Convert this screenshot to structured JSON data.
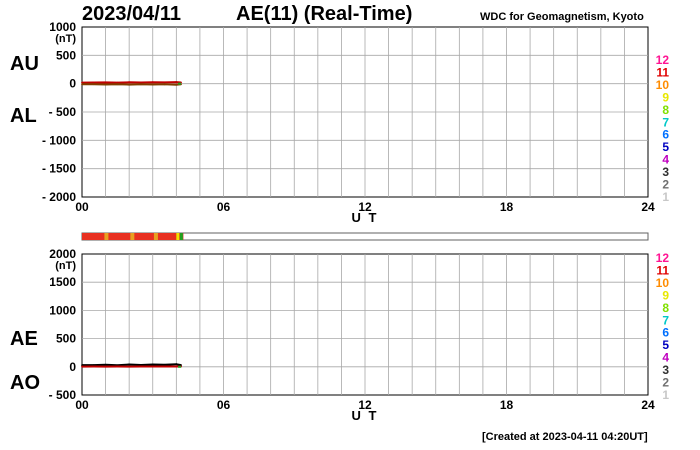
{
  "header": {
    "date": "2023/04/11",
    "title": "AE(11) (Real-Time)",
    "source": "WDC for Geomagnetism, Kyoto"
  },
  "footer": {
    "created": "[Created at 2023-04-11 04:20UT]"
  },
  "legend_hours": [
    "12",
    "11",
    "10",
    "9",
    "8",
    "7",
    "6",
    "5",
    "4",
    "3",
    "2",
    "1"
  ],
  "legend_colors": [
    "#ff1493",
    "#e00000",
    "#ff8c00",
    "#e8e800",
    "#80e000",
    "#00c8c8",
    "#0070ff",
    "#0000c0",
    "#c000c0",
    "#303030",
    "#707070",
    "#c8c8c8"
  ],
  "status_bar": {
    "segment_colors": [
      "#e83020",
      "#e8a020",
      "#f0e000",
      "#20a020"
    ],
    "filled_until_hour": 4.3
  },
  "chart_data": [
    {
      "type": "line",
      "name": "AU/AL",
      "xlabel": "U T",
      "ylabel_unit": "(nT)",
      "side_labels": [
        "AU",
        "AL"
      ],
      "xlim": [
        0,
        24
      ],
      "ylim": [
        -2000,
        1000
      ],
      "xticks": [
        "00",
        "06",
        "12",
        "18",
        "24"
      ],
      "yticks": [
        "1000",
        "500",
        "0",
        "- 500",
        "- 1000",
        "- 1500",
        "- 2000"
      ],
      "series": [
        {
          "name": "AU",
          "color": "#c00000",
          "x": [
            0,
            0.5,
            1,
            1.5,
            2,
            2.5,
            3,
            3.5,
            4,
            4.2
          ],
          "y": [
            18,
            20,
            22,
            19,
            24,
            21,
            26,
            23,
            28,
            20
          ]
        },
        {
          "name": "AL",
          "color": "#804000",
          "x": [
            0,
            0.5,
            1,
            1.5,
            2,
            2.5,
            3,
            3.5,
            4,
            4.2
          ],
          "y": [
            -12,
            -10,
            -14,
            -9,
            -16,
            -11,
            -15,
            -12,
            -18,
            -10
          ]
        }
      ]
    },
    {
      "type": "line",
      "name": "AE/AO",
      "xlabel": "U T",
      "ylabel_unit": "(nT)",
      "side_labels": [
        "AE",
        "AO"
      ],
      "xlim": [
        0,
        24
      ],
      "ylim": [
        -500,
        2000
      ],
      "xticks": [
        "00",
        "06",
        "12",
        "18",
        "24"
      ],
      "yticks": [
        "2000",
        "1500",
        "1000",
        "500",
        "0",
        "- 500"
      ],
      "series": [
        {
          "name": "AE",
          "color": "#000000",
          "x": [
            0,
            0.5,
            1,
            1.5,
            2,
            2.5,
            3,
            3.5,
            4,
            4.2
          ],
          "y": [
            30,
            30,
            36,
            28,
            40,
            32,
            41,
            35,
            46,
            30
          ]
        },
        {
          "name": "AO",
          "color": "#c00000",
          "x": [
            0,
            0.5,
            1,
            1.5,
            2,
            2.5,
            3,
            3.5,
            4,
            4.2
          ],
          "y": [
            3,
            5,
            4,
            5,
            4,
            5,
            5,
            5,
            5,
            5
          ]
        }
      ]
    }
  ]
}
